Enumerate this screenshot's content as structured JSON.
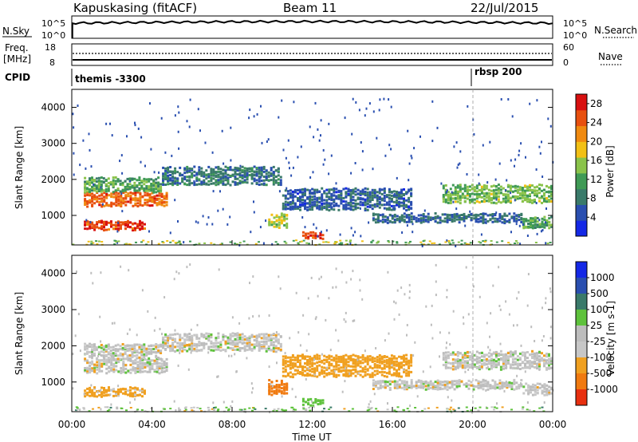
{
  "header": {
    "station": "Kapuskasing (fitACF)",
    "beam": "Beam 11",
    "date": "22/Jul/2015"
  },
  "status_panels": {
    "nsky_label": "N.Sky",
    "nsky_ticks": [
      "10^5",
      "10^0"
    ],
    "nsearch_label": "N.Search",
    "freq_label_1": "Freq.",
    "freq_label_2": "[MHz]",
    "freq_ticks": [
      "18",
      "8"
    ],
    "nave_label": "Nave",
    "nave_ticks": [
      "60",
      "0"
    ],
    "cpid_label": "CPID",
    "cpid_segments": [
      {
        "name": "themis -3300",
        "start_hour": 0
      },
      {
        "name": "rbsp 200",
        "start_hour": 20
      }
    ]
  },
  "colors": {
    "power": [
      "#1428e6",
      "#2a4fb0",
      "#3a7a6a",
      "#3f9a55",
      "#8ac34a",
      "#f2c015",
      "#f08a10",
      "#e8500f",
      "#d81010"
    ],
    "velocity": [
      "#1428e6",
      "#2a4fb0",
      "#3a7a6a",
      "#5ec23c",
      "#bdbdbd",
      "#c7c7c7",
      "#f0a020",
      "#f07a10",
      "#e83010"
    ]
  },
  "chart_data": [
    {
      "type": "heatmap",
      "name": "power",
      "x": {
        "label": "Time UT",
        "ticks": [
          "00:00",
          "04:00",
          "08:00",
          "12:00",
          "16:00",
          "20:00",
          "00:00"
        ],
        "range_hours": [
          0,
          24
        ]
      },
      "y": {
        "label": "Slant Range [km]",
        "ticks": [
          "1000",
          "2000",
          "3000",
          "4000"
        ],
        "range": [
          180,
          4500
        ]
      },
      "colorbar": {
        "label": "Power [dB]",
        "ticks": [
          "4",
          "8",
          "12",
          "16",
          "20",
          "24",
          "28"
        ],
        "range": [
          0,
          30
        ]
      },
      "echo_bands": [
        {
          "t0": 0.6,
          "t1": 4.8,
          "r0": 1300,
          "r1": 1700,
          "level": 24
        },
        {
          "t0": 0.6,
          "t1": 3.7,
          "r0": 650,
          "r1": 900,
          "level": 26
        },
        {
          "t0": 0.6,
          "t1": 4.5,
          "r0": 1700,
          "r1": 2100,
          "level": 12
        },
        {
          "t0": 4.5,
          "t1": 10.5,
          "r0": 1900,
          "r1": 2400,
          "level": 8
        },
        {
          "t0": 10.5,
          "t1": 17.0,
          "r0": 1200,
          "r1": 1800,
          "level": 6
        },
        {
          "t0": 15.0,
          "t1": 22.5,
          "r0": 850,
          "r1": 1100,
          "level": 7
        },
        {
          "t0": 18.5,
          "t1": 24.0,
          "r0": 1400,
          "r1": 1900,
          "level": 14
        },
        {
          "t0": 11.5,
          "t1": 12.6,
          "r0": 400,
          "r1": 600,
          "level": 26
        },
        {
          "t0": 9.8,
          "t1": 10.8,
          "r0": 700,
          "r1": 1100,
          "level": 16
        },
        {
          "t0": 22.5,
          "t1": 24.0,
          "r0": 700,
          "r1": 1000,
          "level": 12
        }
      ]
    },
    {
      "type": "heatmap",
      "name": "velocity",
      "x": {
        "label": "Time UT",
        "ticks": [
          "00:00",
          "04:00",
          "08:00",
          "12:00",
          "16:00",
          "20:00",
          "00:00"
        ],
        "range_hours": [
          0,
          24
        ]
      },
      "y": {
        "label": "Slant Range [km]",
        "ticks": [
          "1000",
          "2000",
          "3000",
          "4000"
        ],
        "range": [
          180,
          4500
        ]
      },
      "colorbar": {
        "label": "Velocity [m s-1]",
        "ticks": [
          "1000",
          "500",
          "100",
          "25",
          "-25",
          "-100",
          "-500",
          "-1000"
        ]
      },
      "echo_bands": [
        {
          "t0": 0.6,
          "t1": 4.8,
          "r0": 1300,
          "r1": 1700,
          "level": 0
        },
        {
          "t0": 0.6,
          "t1": 3.7,
          "r0": 650,
          "r1": 900,
          "level": -50
        },
        {
          "t0": 0.6,
          "t1": 4.5,
          "r0": 1700,
          "r1": 2100,
          "level": 0
        },
        {
          "t0": 4.5,
          "t1": 10.5,
          "r0": 1900,
          "r1": 2400,
          "level": 0
        },
        {
          "t0": 10.5,
          "t1": 17.0,
          "r0": 1200,
          "r1": 1800,
          "level": -60
        },
        {
          "t0": 15.0,
          "t1": 22.5,
          "r0": 850,
          "r1": 1100,
          "level": 0
        },
        {
          "t0": 18.5,
          "t1": 24.0,
          "r0": 1400,
          "r1": 1900,
          "level": 0
        },
        {
          "t0": 11.5,
          "t1": 12.6,
          "r0": 400,
          "r1": 600,
          "level": 60
        },
        {
          "t0": 9.8,
          "t1": 10.8,
          "r0": 700,
          "r1": 1100,
          "level": -200
        },
        {
          "t0": 22.5,
          "t1": 24.0,
          "r0": 700,
          "r1": 1000,
          "level": 0
        }
      ]
    }
  ]
}
